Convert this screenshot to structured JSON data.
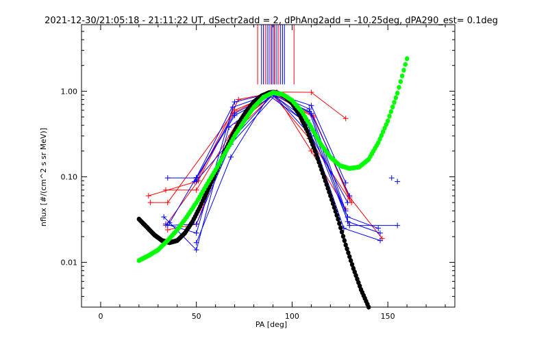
{
  "chart_data": {
    "type": "scatter",
    "title": "2021-12-30/21:05:18 - 21:11:22 UT, dSectr2add = 2, dPhAng2add = -10.25deg, dPA290_est=    0.1deg",
    "xlabel": "PA [deg]",
    "ylabel": "nflux [#/(cm^2 s sr MeV)]",
    "xlim": [
      -10,
      185
    ],
    "ylim": [
      0.003,
      6.0
    ],
    "yscale": "log",
    "x_ticks": [
      0,
      50,
      100,
      150
    ],
    "x_tick_labels": [
      "0",
      "50",
      "100",
      "150"
    ],
    "y_ticks": [
      0.01,
      0.1,
      1.0
    ],
    "y_tick_labels": [
      "0.01",
      "0.10",
      "1.00"
    ],
    "grid": false,
    "colors": {
      "blue": "#0000ff",
      "red": "#ff0000",
      "black": "#000000",
      "green": "#00ff00"
    },
    "vertical_markers": {
      "y_from": 1.2,
      "y_to": 6.0,
      "red_x": [
        82,
        86,
        89,
        91,
        93,
        101
      ],
      "blue_x": [
        84,
        85,
        87,
        88,
        89.5,
        90.5,
        92,
        94,
        95,
        96
      ]
    },
    "blue_traces": [
      [
        [
          35,
          0.097
        ],
        [
          50,
          0.097
        ],
        [
          70,
          0.55
        ],
        [
          90,
          0.95
        ],
        [
          110,
          0.68
        ],
        [
          128,
          0.085
        ]
      ],
      [
        [
          33,
          0.034
        ],
        [
          50,
          0.014
        ],
        [
          67,
          0.38
        ],
        [
          90,
          0.91
        ],
        [
          108,
          0.46
        ],
        [
          130,
          0.027
        ],
        [
          155,
          0.027
        ]
      ],
      [
        [
          34,
          0.028
        ],
        [
          50,
          0.022
        ],
        [
          69,
          0.65
        ],
        [
          89,
          0.93
        ],
        [
          109,
          0.58
        ],
        [
          129,
          0.03
        ],
        [
          146,
          0.022
        ]
      ],
      [
        [
          35,
          0.027
        ],
        [
          50,
          0.028
        ],
        [
          68,
          0.24
        ],
        [
          91,
          0.89
        ],
        [
          111,
          0.35
        ],
        [
          129,
          0.034
        ],
        [
          145,
          0.025
        ]
      ],
      [
        [
          36,
          0.029
        ],
        [
          50,
          0.098
        ],
        [
          70,
          0.75
        ],
        [
          90,
          0.96
        ],
        [
          110,
          0.55
        ],
        [
          128,
          0.04
        ]
      ],
      [
        [
          50,
          0.017
        ],
        [
          68,
          0.17
        ],
        [
          88,
          0.89
        ],
        [
          108,
          0.42
        ],
        [
          127,
          0.025
        ],
        [
          146,
          0.018
        ]
      ],
      [
        [
          50,
          0.09
        ],
        [
          69,
          0.28
        ],
        [
          90,
          0.92
        ],
        [
          110,
          0.3
        ],
        [
          129,
          0.05
        ]
      ],
      [
        [
          49,
          0.088
        ],
        [
          70,
          0.52
        ],
        [
          91,
          0.94
        ],
        [
          109,
          0.62
        ],
        [
          130,
          0.06
        ]
      ]
    ],
    "blue_isolated": [
      [
        152,
        0.097
      ],
      [
        155,
        0.088
      ]
    ],
    "red_traces": [
      [
        [
          25,
          0.06
        ],
        [
          50,
          0.088
        ],
        [
          72,
          0.8
        ],
        [
          92,
          0.98
        ],
        [
          110,
          0.97
        ],
        [
          128,
          0.48
        ]
      ],
      [
        [
          26,
          0.05
        ],
        [
          35,
          0.05
        ],
        [
          69,
          0.55
        ],
        [
          89,
          0.96
        ],
        [
          111,
          0.52
        ],
        [
          130,
          0.055
        ]
      ],
      [
        [
          34,
          0.07
        ],
        [
          50,
          0.07
        ],
        [
          71,
          0.42
        ],
        [
          90,
          0.9
        ],
        [
          109,
          0.28
        ],
        [
          131,
          0.05
        ]
      ],
      [
        [
          35,
          0.024
        ],
        [
          50,
          0.028
        ],
        [
          68,
          0.3
        ],
        [
          91,
          0.95
        ],
        [
          110,
          0.2
        ],
        [
          128,
          0.042
        ]
      ],
      [
        [
          34,
          0.027
        ],
        [
          51,
          0.09
        ],
        [
          70,
          0.6
        ],
        [
          90,
          0.93
        ],
        [
          111,
          0.5
        ],
        [
          130,
          0.058
        ],
        [
          147,
          0.019
        ]
      ]
    ],
    "black_curve": {
      "name": "",
      "x": [
        20,
        24,
        28,
        32,
        36,
        40,
        44,
        48,
        52,
        56,
        60,
        64,
        68,
        72,
        76,
        80,
        84,
        88,
        90,
        92,
        96,
        100,
        104,
        108,
        112,
        116,
        120,
        124,
        128,
        132,
        136,
        140
      ],
      "y": [
        0.032,
        0.026,
        0.021,
        0.018,
        0.017,
        0.018,
        0.022,
        0.03,
        0.045,
        0.07,
        0.11,
        0.18,
        0.28,
        0.42,
        0.58,
        0.75,
        0.88,
        0.96,
        0.97,
        0.96,
        0.88,
        0.72,
        0.52,
        0.34,
        0.2,
        0.11,
        0.06,
        0.032,
        0.016,
        0.0085,
        0.0048,
        0.003
      ]
    },
    "green_curve": {
      "name": "",
      "x": [
        20,
        25,
        30,
        35,
        40,
        45,
        50,
        55,
        60,
        65,
        70,
        75,
        80,
        85,
        90,
        95,
        100,
        105,
        110,
        115,
        120,
        125,
        130,
        135,
        140,
        145,
        150,
        155,
        160
      ],
      "y": [
        0.0105,
        0.012,
        0.014,
        0.018,
        0.024,
        0.034,
        0.05,
        0.078,
        0.12,
        0.19,
        0.3,
        0.45,
        0.65,
        0.85,
        0.96,
        0.92,
        0.78,
        0.58,
        0.38,
        0.24,
        0.17,
        0.135,
        0.125,
        0.13,
        0.16,
        0.25,
        0.45,
        0.95,
        2.4
      ]
    }
  }
}
